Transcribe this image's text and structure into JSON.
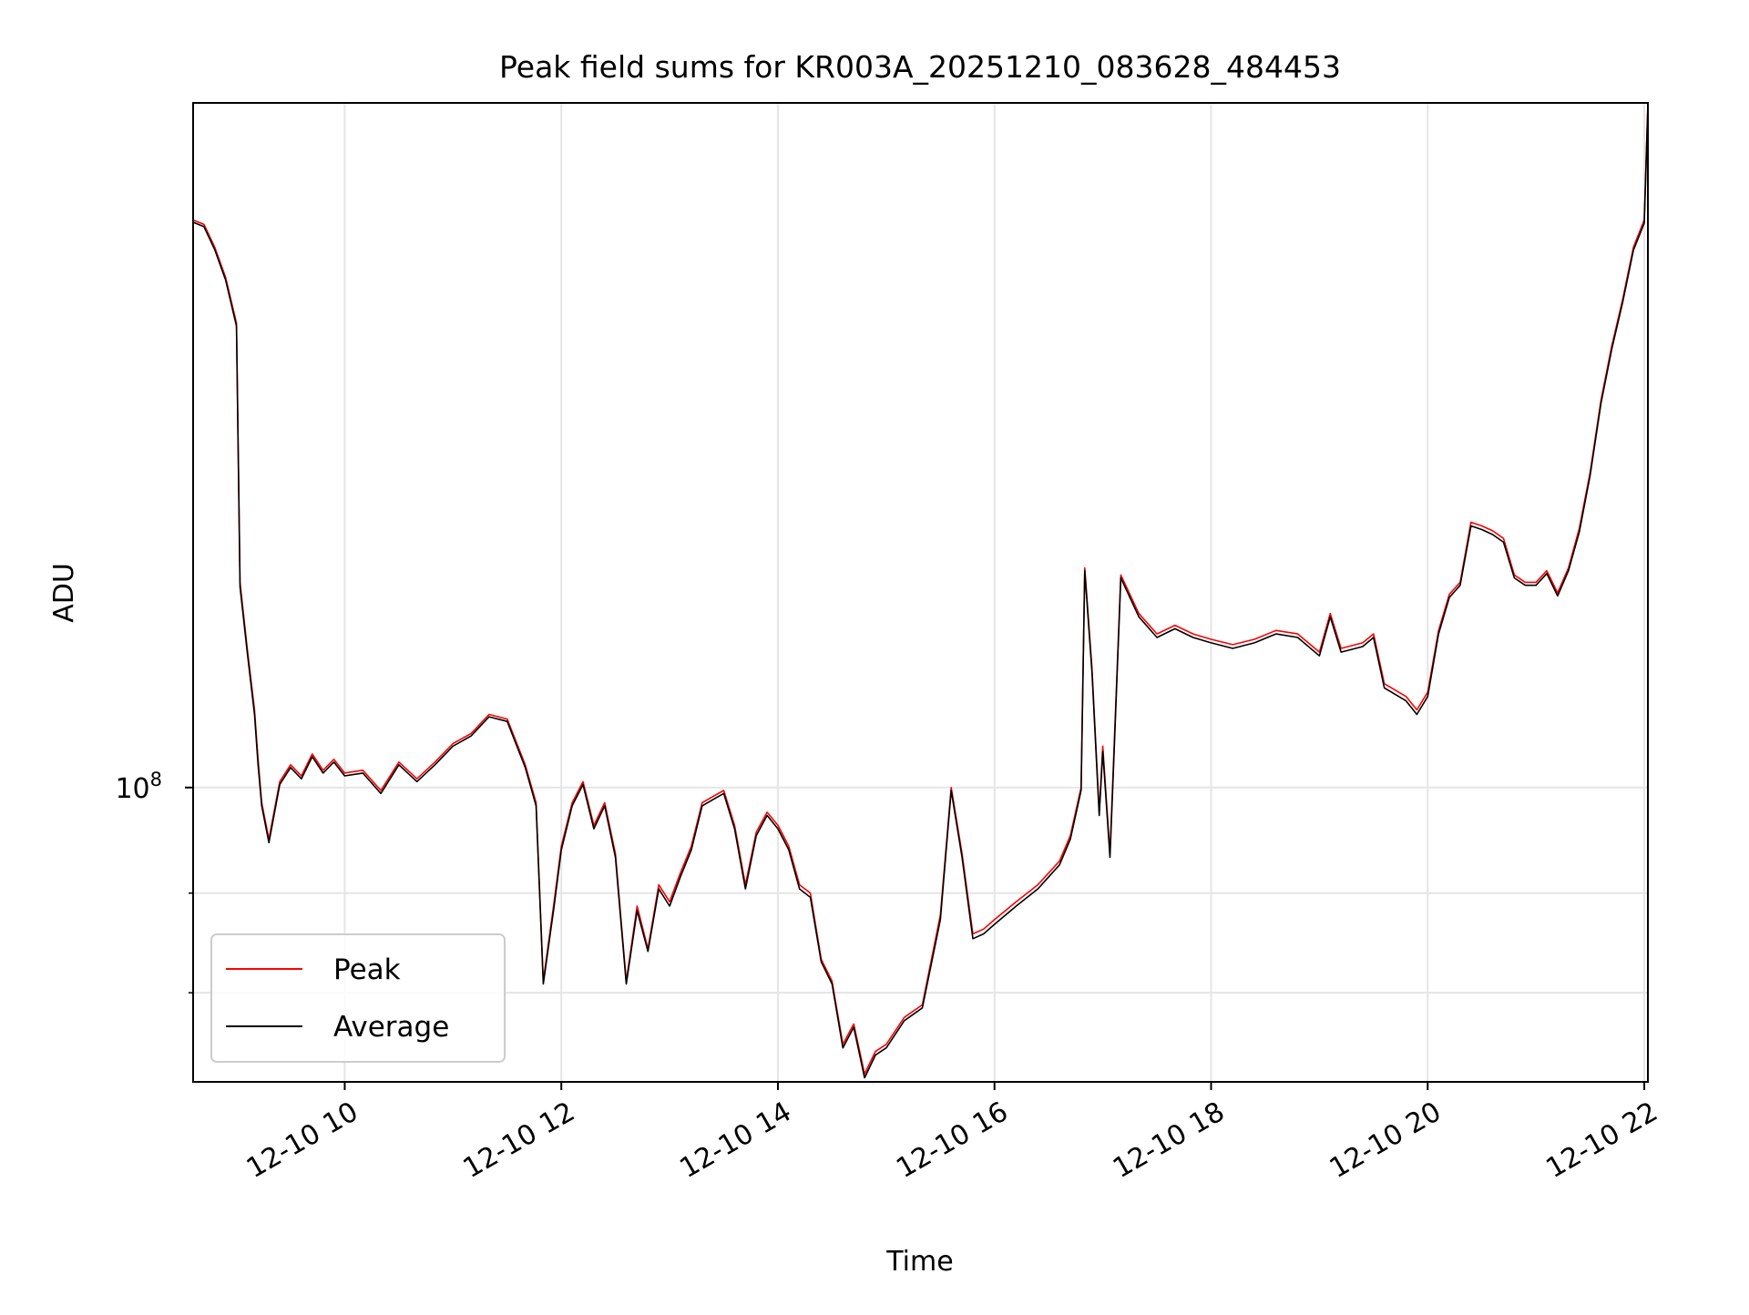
{
  "chart_data": {
    "type": "line",
    "title": "Peak field sums for KR003A_20251210_083628_484453",
    "xlabel": "Time",
    "ylabel": "ADU",
    "x_scale": "time",
    "y_scale": "log",
    "xlim": [
      "2025-12-10 08:36",
      "2025-12-10 22:02"
    ],
    "ylim": [
      37000000,
      1010000000
    ],
    "x_ticks": [
      {
        "value": "2025-12-10 10:00",
        "label": "12-10 10"
      },
      {
        "value": "2025-12-10 12:00",
        "label": "12-10 12"
      },
      {
        "value": "2025-12-10 14:00",
        "label": "12-10 14"
      },
      {
        "value": "2025-12-10 16:00",
        "label": "12-10 16"
      },
      {
        "value": "2025-12-10 18:00",
        "label": "12-10 18"
      },
      {
        "value": "2025-12-10 20:00",
        "label": "12-10 20"
      },
      {
        "value": "2025-12-10 22:00",
        "label": "12-10 22"
      }
    ],
    "y_ticks": [
      {
        "value": 100000000,
        "base": "10",
        "exp": "8"
      }
    ],
    "y_minor_gridlines": [
      50000000,
      70000000
    ],
    "grid": true,
    "legend": {
      "placement": "lower-left",
      "entries": [
        "Peak",
        "Average"
      ]
    },
    "series": [
      {
        "name": "Peak",
        "color": "#ff0000",
        "x": [
          "2025-12-10 08:36",
          "2025-12-10 08:42",
          "2025-12-10 08:48",
          "2025-12-10 08:54",
          "2025-12-10 09:00",
          "2025-12-10 09:02",
          "2025-12-10 09:06",
          "2025-12-10 09:10",
          "2025-12-10 09:12",
          "2025-12-10 09:14",
          "2025-12-10 09:18",
          "2025-12-10 09:24",
          "2025-12-10 09:30",
          "2025-12-10 09:36",
          "2025-12-10 09:42",
          "2025-12-10 09:48",
          "2025-12-10 09:54",
          "2025-12-10 10:00",
          "2025-12-10 10:10",
          "2025-12-10 10:20",
          "2025-12-10 10:30",
          "2025-12-10 10:40",
          "2025-12-10 10:50",
          "2025-12-10 11:00",
          "2025-12-10 11:10",
          "2025-12-10 11:20",
          "2025-12-10 11:30",
          "2025-12-10 11:40",
          "2025-12-10 11:46",
          "2025-12-10 11:50",
          "2025-12-10 11:56",
          "2025-12-10 12:00",
          "2025-12-10 12:06",
          "2025-12-10 12:12",
          "2025-12-10 12:18",
          "2025-12-10 12:24",
          "2025-12-10 12:30",
          "2025-12-10 12:36",
          "2025-12-10 12:42",
          "2025-12-10 12:48",
          "2025-12-10 12:54",
          "2025-12-10 13:00",
          "2025-12-10 13:06",
          "2025-12-10 13:12",
          "2025-12-10 13:18",
          "2025-12-10 13:24",
          "2025-12-10 13:30",
          "2025-12-10 13:36",
          "2025-12-10 13:42",
          "2025-12-10 13:48",
          "2025-12-10 13:54",
          "2025-12-10 14:00",
          "2025-12-10 14:06",
          "2025-12-10 14:12",
          "2025-12-10 14:18",
          "2025-12-10 14:24",
          "2025-12-10 14:30",
          "2025-12-10 14:36",
          "2025-12-10 14:42",
          "2025-12-10 14:48",
          "2025-12-10 14:54",
          "2025-12-10 15:00",
          "2025-12-10 15:10",
          "2025-12-10 15:20",
          "2025-12-10 15:30",
          "2025-12-10 15:36",
          "2025-12-10 15:42",
          "2025-12-10 15:48",
          "2025-12-10 15:54",
          "2025-12-10 16:00",
          "2025-12-10 16:12",
          "2025-12-10 16:24",
          "2025-12-10 16:36",
          "2025-12-10 16:42",
          "2025-12-10 16:48",
          "2025-12-10 16:50",
          "2025-12-10 16:54",
          "2025-12-10 16:58",
          "2025-12-10 17:00",
          "2025-12-10 17:04",
          "2025-12-10 17:06",
          "2025-12-10 17:10",
          "2025-12-10 17:20",
          "2025-12-10 17:30",
          "2025-12-10 17:40",
          "2025-12-10 17:50",
          "2025-12-10 18:00",
          "2025-12-10 18:12",
          "2025-12-10 18:24",
          "2025-12-10 18:36",
          "2025-12-10 18:48",
          "2025-12-10 19:00",
          "2025-12-10 19:06",
          "2025-12-10 19:12",
          "2025-12-10 19:24",
          "2025-12-10 19:30",
          "2025-12-10 19:36",
          "2025-12-10 19:48",
          "2025-12-10 19:54",
          "2025-12-10 20:00",
          "2025-12-10 20:06",
          "2025-12-10 20:12",
          "2025-12-10 20:18",
          "2025-12-10 20:24",
          "2025-12-10 20:30",
          "2025-12-10 20:36",
          "2025-12-10 20:42",
          "2025-12-10 20:48",
          "2025-12-10 20:54",
          "2025-12-10 21:00",
          "2025-12-10 21:06",
          "2025-12-10 21:12",
          "2025-12-10 21:18",
          "2025-12-10 21:24",
          "2025-12-10 21:30",
          "2025-12-10 21:36",
          "2025-12-10 21:42",
          "2025-12-10 21:48",
          "2025-12-10 21:54",
          "2025-12-10 22:00",
          "2025-12-10 22:02"
        ],
        "values": [
          680000000,
          670000000,
          620000000,
          560000000,
          480000000,
          200000000,
          160000000,
          130000000,
          110000000,
          95000000,
          84000000,
          102000000,
          108000000,
          104000000,
          112000000,
          106000000,
          110000000,
          105000000,
          106000000,
          99000000,
          109000000,
          103000000,
          109000000,
          116000000,
          120000000,
          128000000,
          126000000,
          108000000,
          95000000,
          52000000,
          68000000,
          82000000,
          95000000,
          102000000,
          88000000,
          95000000,
          80000000,
          52000000,
          67000000,
          58000000,
          72000000,
          68000000,
          75000000,
          82000000,
          95000000,
          97000000,
          99000000,
          88000000,
          72000000,
          86000000,
          92000000,
          88000000,
          82000000,
          72000000,
          70000000,
          56000000,
          52000000,
          42000000,
          45000000,
          38000000,
          41000000,
          42000000,
          46000000,
          48000000,
          65000000,
          100000000,
          80000000,
          61000000,
          62000000,
          64000000,
          68000000,
          72000000,
          78000000,
          85000000,
          100000000,
          210000000,
          150000000,
          92000000,
          115000000,
          80000000,
          110000000,
          205000000,
          180000000,
          168000000,
          173000000,
          168000000,
          165000000,
          162000000,
          165000000,
          170000000,
          168000000,
          158000000,
          180000000,
          160000000,
          163000000,
          168000000,
          142000000,
          136000000,
          130000000,
          138000000,
          170000000,
          192000000,
          200000000,
          245000000,
          242000000,
          238000000,
          232000000,
          205000000,
          200000000,
          200000000,
          208000000,
          193000000,
          210000000,
          240000000,
          290000000,
          370000000,
          445000000,
          520000000,
          620000000,
          680000000,
          1010000000
        ]
      },
      {
        "name": "Average",
        "color": "#000000",
        "x": [
          "2025-12-10 08:36",
          "2025-12-10 08:42",
          "2025-12-10 08:48",
          "2025-12-10 08:54",
          "2025-12-10 09:00",
          "2025-12-10 09:02",
          "2025-12-10 09:06",
          "2025-12-10 09:10",
          "2025-12-10 09:12",
          "2025-12-10 09:14",
          "2025-12-10 09:18",
          "2025-12-10 09:24",
          "2025-12-10 09:30",
          "2025-12-10 09:36",
          "2025-12-10 09:42",
          "2025-12-10 09:48",
          "2025-12-10 09:54",
          "2025-12-10 10:00",
          "2025-12-10 10:10",
          "2025-12-10 10:20",
          "2025-12-10 10:30",
          "2025-12-10 10:40",
          "2025-12-10 10:50",
          "2025-12-10 11:00",
          "2025-12-10 11:10",
          "2025-12-10 11:20",
          "2025-12-10 11:30",
          "2025-12-10 11:40",
          "2025-12-10 11:46",
          "2025-12-10 11:50",
          "2025-12-10 11:56",
          "2025-12-10 12:00",
          "2025-12-10 12:06",
          "2025-12-10 12:12",
          "2025-12-10 12:18",
          "2025-12-10 12:24",
          "2025-12-10 12:30",
          "2025-12-10 12:36",
          "2025-12-10 12:42",
          "2025-12-10 12:48",
          "2025-12-10 12:54",
          "2025-12-10 13:00",
          "2025-12-10 13:06",
          "2025-12-10 13:12",
          "2025-12-10 13:18",
          "2025-12-10 13:24",
          "2025-12-10 13:30",
          "2025-12-10 13:36",
          "2025-12-10 13:42",
          "2025-12-10 13:48",
          "2025-12-10 13:54",
          "2025-12-10 14:00",
          "2025-12-10 14:06",
          "2025-12-10 14:12",
          "2025-12-10 14:18",
          "2025-12-10 14:24",
          "2025-12-10 14:30",
          "2025-12-10 14:36",
          "2025-12-10 14:42",
          "2025-12-10 14:48",
          "2025-12-10 14:54",
          "2025-12-10 15:00",
          "2025-12-10 15:10",
          "2025-12-10 15:20",
          "2025-12-10 15:30",
          "2025-12-10 15:36",
          "2025-12-10 15:42",
          "2025-12-10 15:48",
          "2025-12-10 15:54",
          "2025-12-10 16:00",
          "2025-12-10 16:12",
          "2025-12-10 16:24",
          "2025-12-10 16:36",
          "2025-12-10 16:42",
          "2025-12-10 16:48",
          "2025-12-10 16:50",
          "2025-12-10 16:54",
          "2025-12-10 16:58",
          "2025-12-10 17:00",
          "2025-12-10 17:04",
          "2025-12-10 17:06",
          "2025-12-10 17:10",
          "2025-12-10 17:20",
          "2025-12-10 17:30",
          "2025-12-10 17:40",
          "2025-12-10 17:50",
          "2025-12-10 18:00",
          "2025-12-10 18:12",
          "2025-12-10 18:24",
          "2025-12-10 18:36",
          "2025-12-10 18:48",
          "2025-12-10 19:00",
          "2025-12-10 19:06",
          "2025-12-10 19:12",
          "2025-12-10 19:24",
          "2025-12-10 19:30",
          "2025-12-10 19:36",
          "2025-12-10 19:48",
          "2025-12-10 19:54",
          "2025-12-10 20:00",
          "2025-12-10 20:06",
          "2025-12-10 20:12",
          "2025-12-10 20:18",
          "2025-12-10 20:24",
          "2025-12-10 20:30",
          "2025-12-10 20:36",
          "2025-12-10 20:42",
          "2025-12-10 20:48",
          "2025-12-10 20:54",
          "2025-12-10 21:00",
          "2025-12-10 21:06",
          "2025-12-10 21:12",
          "2025-12-10 21:18",
          "2025-12-10 21:24",
          "2025-12-10 21:30",
          "2025-12-10 21:36",
          "2025-12-10 21:42",
          "2025-12-10 21:48",
          "2025-12-10 21:54",
          "2025-12-10 22:00",
          "2025-12-10 22:02"
        ],
        "values": [
          675000000,
          665000000,
          615000000,
          555000000,
          475000000,
          197000000,
          158000000,
          128000000,
          108000000,
          94000000,
          83000000,
          101000000,
          107000000,
          103000000,
          111000000,
          105000000,
          109000000,
          104000000,
          105000000,
          98000000,
          108000000,
          102000000,
          108000000,
          115000000,
          119000000,
          127000000,
          125000000,
          107000000,
          94000000,
          51500000,
          67000000,
          81000000,
          94000000,
          101000000,
          87000000,
          94000000,
          79000000,
          51500000,
          66000000,
          57500000,
          71000000,
          67000000,
          74000000,
          81000000,
          94000000,
          96000000,
          98000000,
          87000000,
          71000000,
          85000000,
          91000000,
          87000000,
          81000000,
          71000000,
          69000000,
          55500000,
          51500000,
          41500000,
          44500000,
          37500000,
          40500000,
          41500000,
          45500000,
          47500000,
          64000000,
          99000000,
          79000000,
          60000000,
          61000000,
          63000000,
          67000000,
          71000000,
          77000000,
          84000000,
          99000000,
          208000000,
          148000000,
          91000000,
          113000000,
          79000000,
          108000000,
          203000000,
          178000000,
          166000000,
          171000000,
          166000000,
          163000000,
          160000000,
          163000000,
          168000000,
          166000000,
          156000000,
          178000000,
          158000000,
          161000000,
          166000000,
          140000000,
          134000000,
          128000000,
          136000000,
          168000000,
          190000000,
          198000000,
          242000000,
          239000000,
          235000000,
          229000000,
          203000000,
          198000000,
          198000000,
          206000000,
          191000000,
          208000000,
          237000000,
          287000000,
          366000000,
          440000000,
          515000000,
          614000000,
          673000000,
          1000000000
        ]
      }
    ]
  }
}
